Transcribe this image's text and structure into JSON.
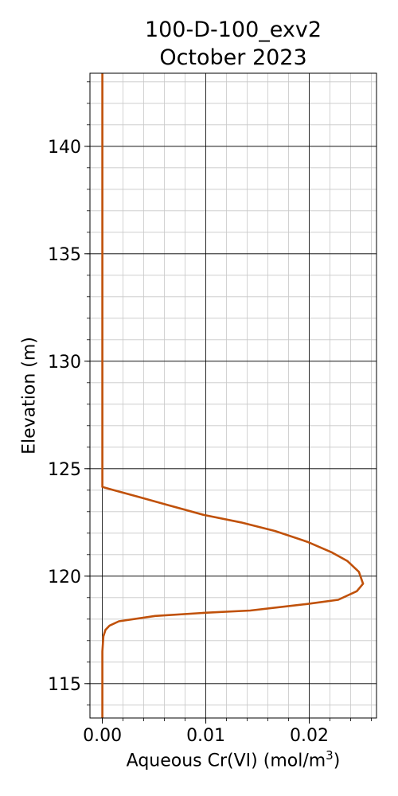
{
  "chart_data": {
    "type": "line",
    "title_line1": "100-D-100_exv2",
    "title_line2": "October 2023",
    "xlabel_prefix": "Aqueous Cr(VI) (mol/m",
    "xlabel_sup": "3",
    "xlabel_suffix": ")",
    "ylabel": "Elevation (m)",
    "xlim": [
      -0.0012,
      0.0265
    ],
    "ylim": [
      113.4,
      143.4
    ],
    "xticks": [
      0.0,
      0.01,
      0.02
    ],
    "xtick_labels": [
      "0.00",
      "0.01",
      "0.02"
    ],
    "yticks": [
      115,
      120,
      125,
      130,
      135,
      140
    ],
    "ytick_labels": [
      "115",
      "120",
      "125",
      "130",
      "135",
      "140"
    ],
    "x_minor_step": 0.002,
    "y_minor_step": 1,
    "grid": true,
    "line_color": "#c0510a",
    "series": [
      {
        "points": [
          [
            0.0,
            113.4
          ],
          [
            0.0,
            115.0
          ],
          [
            0.0,
            116.5
          ],
          [
            0.0001,
            117.2
          ],
          [
            0.0003,
            117.5
          ],
          [
            0.0007,
            117.7
          ],
          [
            0.0016,
            117.9
          ],
          [
            0.0051,
            118.15
          ],
          [
            0.0101,
            118.3
          ],
          [
            0.0143,
            118.4
          ],
          [
            0.0197,
            118.7
          ],
          [
            0.0228,
            118.9
          ],
          [
            0.0246,
            119.3
          ],
          [
            0.0252,
            119.65
          ],
          [
            0.0248,
            120.2
          ],
          [
            0.0237,
            120.7
          ],
          [
            0.0222,
            121.1
          ],
          [
            0.0198,
            121.6
          ],
          [
            0.0167,
            122.1
          ],
          [
            0.0134,
            122.5
          ],
          [
            0.0098,
            122.85
          ],
          [
            0.0064,
            123.3
          ],
          [
            0.0034,
            123.7
          ],
          [
            0.0011,
            124.0
          ],
          [
            0.0,
            124.15
          ],
          [
            0.0,
            125.0
          ],
          [
            0.0,
            130.0
          ],
          [
            0.0,
            135.0
          ],
          [
            0.0,
            140.0
          ],
          [
            0.0,
            143.4
          ]
        ]
      }
    ]
  }
}
